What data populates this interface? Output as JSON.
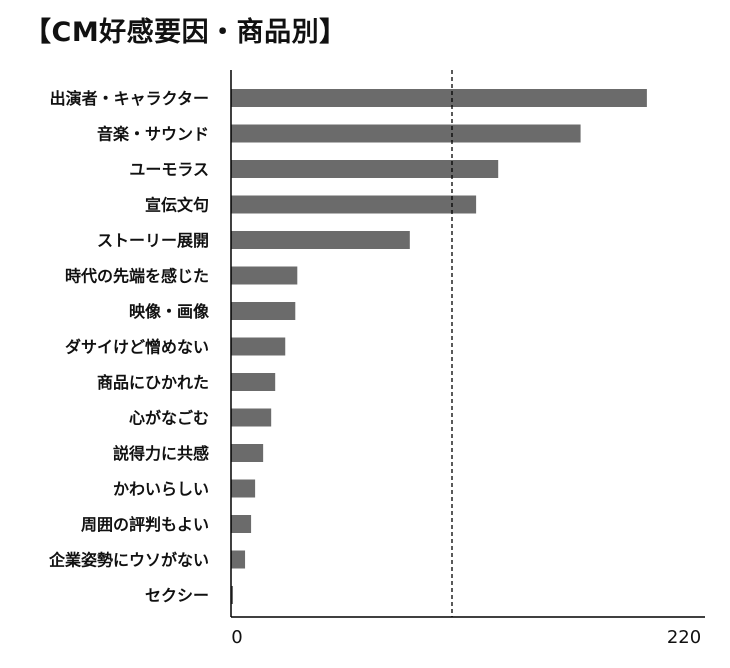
{
  "chart_data": {
    "type": "bar",
    "orientation": "horizontal",
    "title": "【CM好感要因・商品別】",
    "categories": [
      "出演者・キャラクター",
      "音楽・サウンド",
      "ユーモラス",
      "宣伝文句",
      "ストーリー展開",
      "時代の先端を感じた",
      "映像・画像",
      "ダサイけど憎めない",
      "商品にひかれた",
      "心がなごむ",
      "説得力に共感",
      "かわいらしい",
      "周囲の評判もよい",
      "企業姿勢にウソがない",
      "セクシー"
    ],
    "values": [
      207,
      174,
      133,
      122,
      89,
      33,
      32,
      27,
      22,
      20,
      16,
      12,
      10,
      7,
      1
    ],
    "xlim": [
      0,
      220
    ],
    "x_tick_labels": [
      "0",
      "220"
    ],
    "reference_line": 110,
    "grid": false,
    "colors": {
      "bar": "#6b6b6b",
      "axis": "#000000",
      "reference_line": "#000000"
    }
  }
}
